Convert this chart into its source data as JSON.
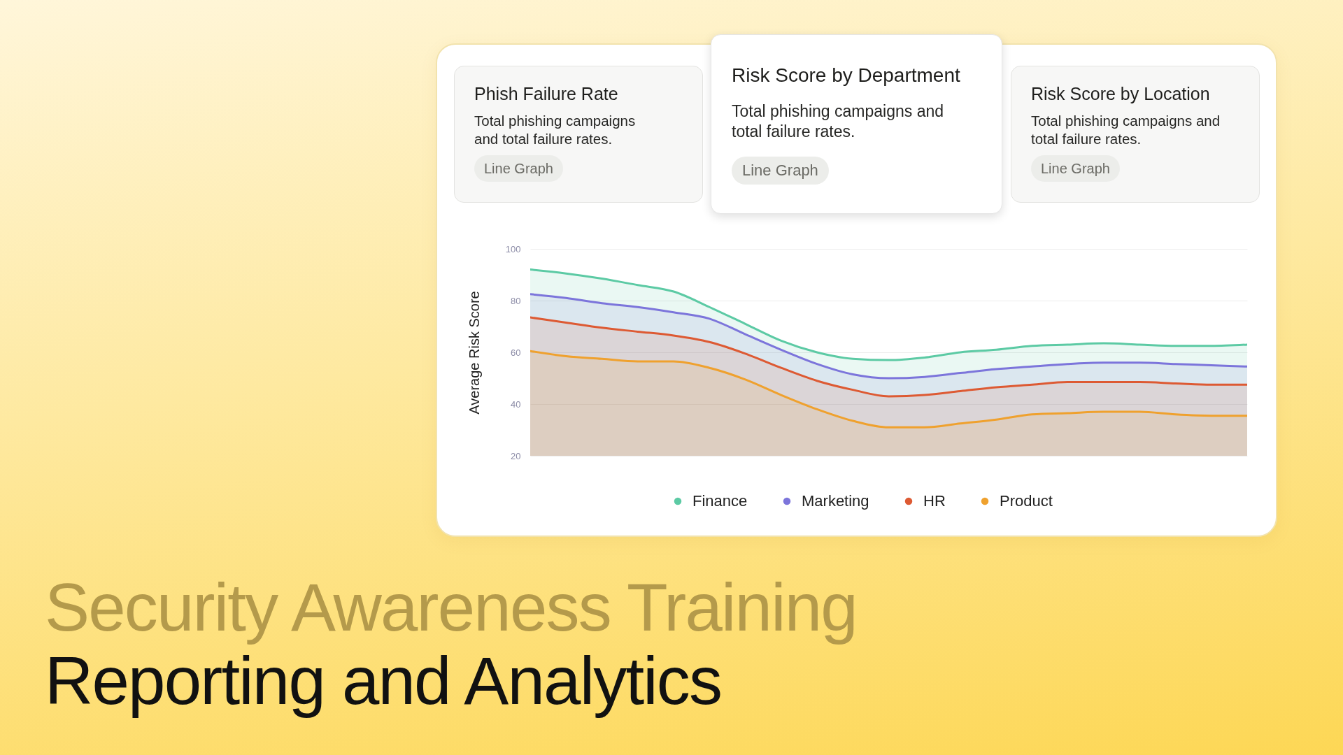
{
  "chart_data": {
    "type": "area",
    "title": "Risk Score by Department",
    "subtitle": "Total phishing campaigns and total failure rates.",
    "ylabel": "Average Risk Score",
    "annotations": [
      "Phish Failure Rate",
      "Total phishing campaigns and total failure rates.",
      "Line Graph",
      "Line Graph",
      "Risk Score by Location",
      "Total phishing campaigns and total failure rates.",
      "Line Graph",
      "Security Awareness Training",
      "Reporting and Analytics"
    ],
    "categories": [
      null,
      null,
      null,
      null,
      null,
      null,
      null,
      null,
      null,
      null,
      null,
      null,
      null,
      null,
      null,
      null,
      null,
      null,
      null,
      null,
      null
    ],
    "series": [
      {
        "name": "Finance",
        "color": "#5ccaa4",
        "values": [
          92,
          90.5,
          88.5,
          86,
          83.5,
          77.5,
          71,
          64.5,
          60,
          57.5,
          57,
          58,
          60,
          61,
          62.5,
          63,
          63.5,
          63,
          62.5,
          62.5,
          63
        ]
      },
      {
        "name": "Marketing",
        "color": "#7c75db",
        "values": [
          82.5,
          81,
          79,
          77.5,
          75.5,
          73,
          67,
          61,
          55.5,
          51.5,
          50,
          50.5,
          52,
          53.5,
          54.5,
          55.5,
          56,
          56,
          55.5,
          55,
          54.5
        ]
      },
      {
        "name": "HR",
        "color": "#dd5a33",
        "values": [
          73.5,
          71.5,
          69.5,
          68,
          66.5,
          64,
          59.5,
          54,
          49,
          45.5,
          43,
          43.5,
          45,
          46.5,
          47.5,
          48.5,
          48.5,
          48.5,
          48,
          47.5,
          47.5
        ]
      },
      {
        "name": "Product",
        "color": "#efa12e",
        "values": [
          60.5,
          58.5,
          57.5,
          56.5,
          56.5,
          54,
          49.5,
          43.5,
          38,
          33.5,
          31,
          31,
          32.5,
          34,
          36,
          36.5,
          37,
          37,
          36,
          35.5,
          35.5
        ]
      }
    ],
    "ylim": [
      20,
      100
    ],
    "yticks": [
      20,
      40,
      60,
      80,
      100
    ],
    "grid": "y",
    "legend": "bottom"
  }
}
